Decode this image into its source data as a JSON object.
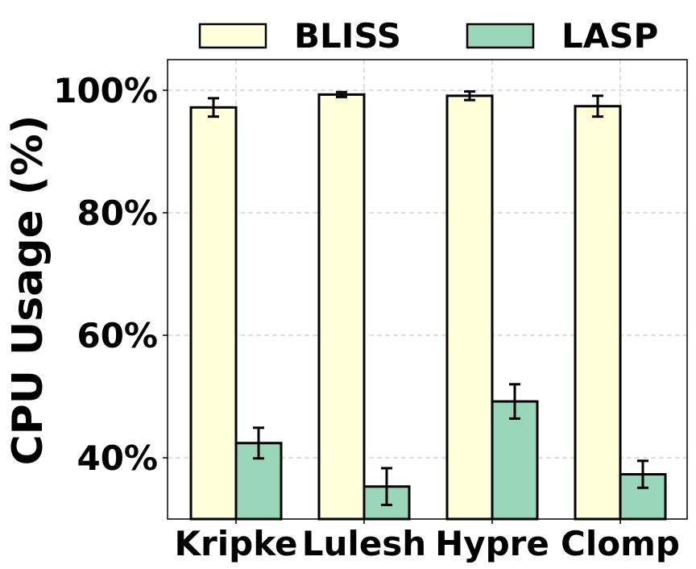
{
  "chart_data": {
    "type": "bar",
    "title": "",
    "xlabel": "",
    "ylabel": "CPU Usage (%)",
    "categories": [
      "Kripke",
      "Lulesh",
      "Hypre",
      "Clomp"
    ],
    "series": [
      {
        "name": "BLISS",
        "color": "#ffffdc",
        "values": [
          97.2,
          99.3,
          99.1,
          97.4
        ],
        "errors": [
          1.5,
          0.4,
          0.7,
          1.7
        ]
      },
      {
        "name": "LASP",
        "color": "#99d6b9",
        "values": [
          42.4,
          35.3,
          49.2,
          37.3
        ],
        "errors": [
          2.5,
          3.0,
          2.8,
          2.2
        ]
      }
    ],
    "ylim": [
      30,
      105
    ],
    "yticks": [
      40,
      60,
      80,
      100
    ],
    "ytick_format": "{v}%",
    "grid": true,
    "legend_position": "top, outside plot"
  }
}
